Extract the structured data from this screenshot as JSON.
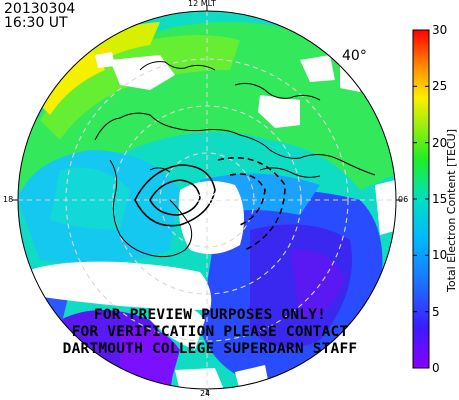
{
  "header": {
    "date": "20130304",
    "time": "16:30 UT"
  },
  "map": {
    "mlt_labels": {
      "top": "12 MLT",
      "left": "18",
      "right": "06",
      "bottom": "24"
    },
    "latitude_label": "40°",
    "watermark": [
      "FOR PREVIEW PURPOSES ONLY!",
      "FOR VERIFICATION PLEASE CONTACT",
      "DARTMOUTH COLLEGE SUPERDARN STAFF"
    ],
    "colors": {
      "gap_white": "#ffffff",
      "coast": "#000000",
      "grid": "#cccccc"
    }
  },
  "colorbar": {
    "title": "Total Electron Content [TECU]",
    "ticks": [
      "0",
      "5",
      "10",
      "15",
      "20",
      "25",
      "30"
    ],
    "min": 0,
    "max": 30
  },
  "chart_data": {
    "type": "heatmap",
    "value_range": [
      0,
      30
    ],
    "units": "TECU"
  }
}
